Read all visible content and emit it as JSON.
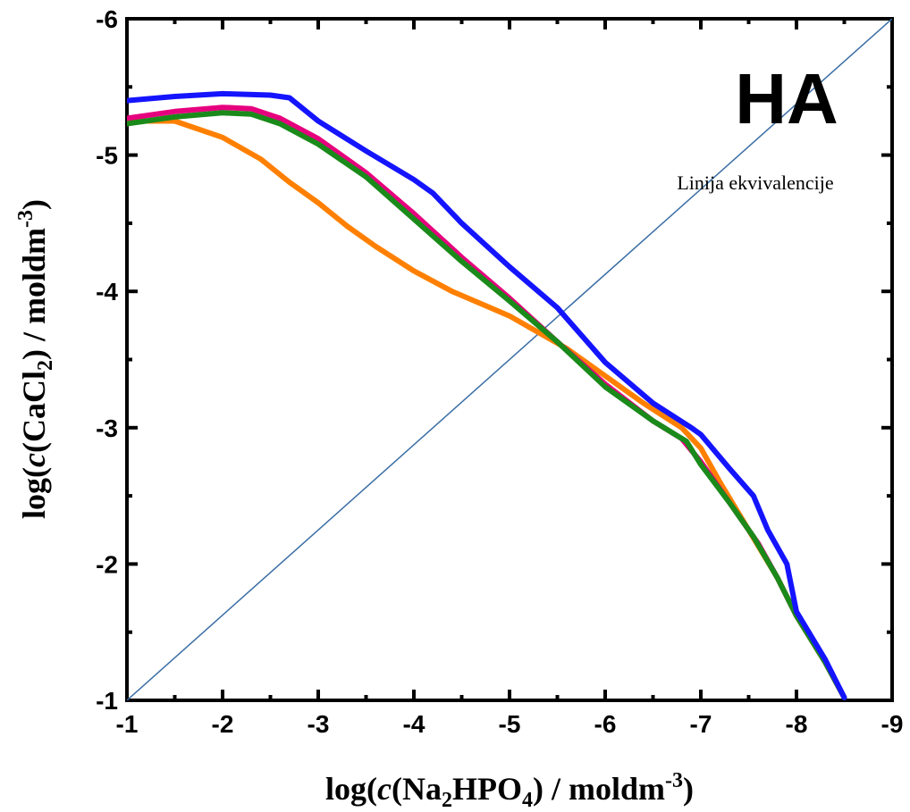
{
  "chart_data": {
    "type": "line",
    "panel_label": "HA",
    "annotation": "Linija ekvivalencije",
    "xlabel": {
      "pre": "log(",
      "italic": "c",
      "mid": "(Na",
      "sub": "2",
      "mid2": "HPO",
      "sub2": "4",
      "post": ") / moldm",
      "sup": "-3",
      "end": ")"
    },
    "ylabel": {
      "pre": "log(",
      "italic": "c",
      "mid": "(CaCl",
      "sub": "2",
      "post": ") / moldm",
      "sup": "-3",
      "end": ")"
    },
    "xlim": [
      -1,
      -9
    ],
    "ylim": [
      -1,
      -6
    ],
    "x_ticks": [
      {
        "value": -1,
        "label": "-1"
      },
      {
        "value": -2,
        "label": "-2"
      },
      {
        "value": -3,
        "label": "-3"
      },
      {
        "value": -4,
        "label": "-4"
      },
      {
        "value": -5,
        "label": "-5"
      },
      {
        "value": -6,
        "label": "-6"
      },
      {
        "value": -7,
        "label": "-7"
      },
      {
        "value": -8,
        "label": "-8"
      },
      {
        "value": -9,
        "label": "-9"
      }
    ],
    "y_ticks": [
      {
        "value": -1,
        "label": "-1"
      },
      {
        "value": -2,
        "label": "-2"
      },
      {
        "value": -3,
        "label": "-3"
      },
      {
        "value": -4,
        "label": "-4"
      },
      {
        "value": -5,
        "label": "-5"
      },
      {
        "value": -6,
        "label": "-6"
      }
    ],
    "grid": false,
    "legend": "none",
    "equivalence_line": {
      "color": "#3a6ea5",
      "x": [
        -1,
        -9
      ],
      "y": [
        -1,
        -6
      ]
    },
    "series": [
      {
        "color": "#ff8000",
        "x": [
          -1,
          -1.5,
          -2,
          -2.4,
          -2.7,
          -3,
          -3.3,
          -3.6,
          -4,
          -4.4,
          -4.8,
          -5,
          -5.3,
          -5.6,
          -6,
          -6.4,
          -6.8,
          -7.0,
          -7.2,
          -7.5,
          -7.8,
          -8.0,
          -8.3,
          -8.5
        ],
        "y": [
          -5.25,
          -5.25,
          -5.13,
          -4.97,
          -4.8,
          -4.65,
          -4.48,
          -4.33,
          -4.15,
          -4.0,
          -3.88,
          -3.82,
          -3.7,
          -3.58,
          -3.38,
          -3.18,
          -3.0,
          -2.85,
          -2.6,
          -2.25,
          -1.9,
          -1.62,
          -1.28,
          -1.02
        ]
      },
      {
        "color": "#e6007e",
        "x": [
          -1,
          -1.5,
          -2,
          -2.3,
          -2.6,
          -3,
          -3.5,
          -4,
          -4.5,
          -5,
          -5.5,
          -6,
          -6.5,
          -6.8,
          -7.0,
          -7.3,
          -7.6,
          -7.8,
          -8.0,
          -8.3,
          -8.5
        ],
        "y": [
          -5.27,
          -5.32,
          -5.35,
          -5.34,
          -5.27,
          -5.12,
          -4.87,
          -4.57,
          -4.25,
          -3.95,
          -3.63,
          -3.32,
          -3.05,
          -2.92,
          -2.75,
          -2.45,
          -2.15,
          -1.9,
          -1.62,
          -1.28,
          -1.02
        ]
      },
      {
        "color": "#1a8a1a",
        "x": [
          -1,
          -1.5,
          -2,
          -2.3,
          -2.6,
          -3,
          -3.5,
          -4,
          -4.5,
          -5,
          -5.5,
          -6,
          -6.5,
          -6.85,
          -7.0,
          -7.3,
          -7.55,
          -7.8,
          -8.0,
          -8.3,
          -8.5
        ],
        "y": [
          -5.23,
          -5.28,
          -5.31,
          -5.3,
          -5.23,
          -5.08,
          -4.84,
          -4.53,
          -4.22,
          -3.93,
          -3.63,
          -3.3,
          -3.05,
          -2.9,
          -2.73,
          -2.45,
          -2.2,
          -1.9,
          -1.62,
          -1.28,
          -1.02
        ]
      },
      {
        "color": "#1414ff",
        "x": [
          -1,
          -1.5,
          -2,
          -2.5,
          -2.7,
          -3,
          -3.5,
          -4,
          -4.2,
          -4.5,
          -5,
          -5.5,
          -6,
          -6.5,
          -6.9,
          -7.0,
          -7.3,
          -7.55,
          -7.7,
          -7.9,
          -8.0,
          -8.3,
          -8.5
        ],
        "y": [
          -5.4,
          -5.43,
          -5.45,
          -5.44,
          -5.42,
          -5.25,
          -5.03,
          -4.82,
          -4.72,
          -4.5,
          -4.18,
          -3.88,
          -3.48,
          -3.18,
          -3.0,
          -2.95,
          -2.7,
          -2.5,
          -2.25,
          -2.0,
          -1.65,
          -1.3,
          -1.02
        ]
      }
    ]
  }
}
